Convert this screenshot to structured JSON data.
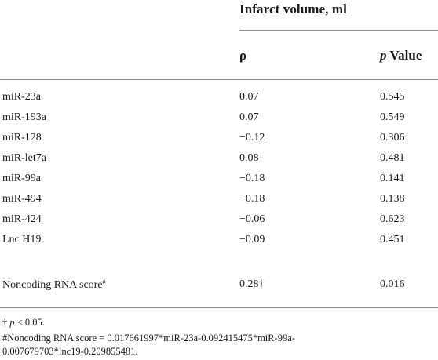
{
  "table": {
    "group_header": "Infarct volume, ml",
    "columns": {
      "rho": "ρ",
      "p_italic": "p",
      "p_rest": " Value"
    },
    "rows": [
      {
        "name": "miR-23a",
        "rho": "0.07",
        "p": "0.545"
      },
      {
        "name": "miR-193a",
        "rho": "0.07",
        "p": "0.549"
      },
      {
        "name": "miR-128",
        "rho": "−0.12",
        "p": "0.306"
      },
      {
        "name": "miR-let7a",
        "rho": "0.08",
        "p": "0.481"
      },
      {
        "name": "miR-99a",
        "rho": "−0.18",
        "p": "0.141"
      },
      {
        "name": "miR-494",
        "rho": "−0.18",
        "p": "0.138"
      },
      {
        "name": "miR-424",
        "rho": "−0.06",
        "p": "0.623"
      },
      {
        "name": "Lnc H19",
        "rho": "−0.09",
        "p": "0.451"
      },
      {
        "name": "Noncoding RNA score",
        "name_sup": "#",
        "rho": "0.28†",
        "p": "0.016"
      }
    ]
  },
  "footnotes": {
    "dagger_prefix": "† ",
    "dagger_italic": "p",
    "dagger_rest": " < 0.05.",
    "score_line1": "#Noncoding RNA score = 0.017661997*miR-23a-0.092415475*miR-99a-",
    "score_line2": "0.007679703*lnc19-0.209855481."
  }
}
